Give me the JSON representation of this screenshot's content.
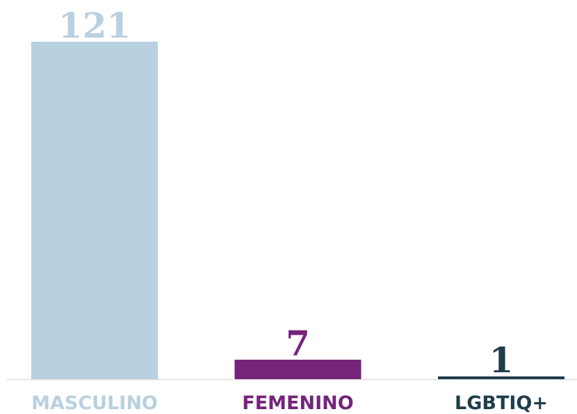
{
  "chart_data": {
    "type": "bar",
    "categories": [
      "MASCULINO",
      "FEMENINO",
      "LGBTIQ+"
    ],
    "values": [
      121,
      7,
      1
    ],
    "colors": [
      "#b9d0e0",
      "#74247a",
      "#1f3d4a"
    ]
  }
}
